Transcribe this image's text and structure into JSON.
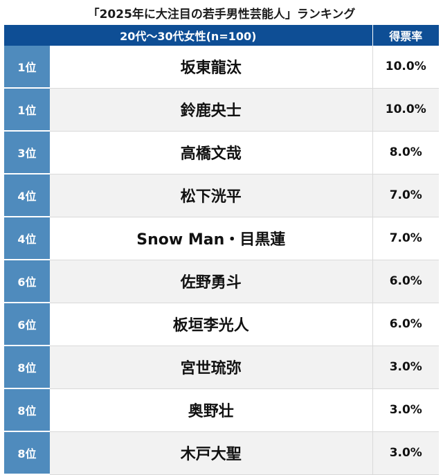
{
  "chart_data": {
    "type": "table",
    "title": "「2025年に大注目の若手男性芸能人」ランキング",
    "header_group": "20代〜30代女性(n=100)",
    "header_pct": "得票率",
    "rows": [
      {
        "rank": "1位",
        "name": "坂東龍汰",
        "pct": "10.0%"
      },
      {
        "rank": "1位",
        "name": "鈴鹿央士",
        "pct": "10.0%"
      },
      {
        "rank": "3位",
        "name": "高橋文哉",
        "pct": "8.0%"
      },
      {
        "rank": "4位",
        "name": "松下洸平",
        "pct": "7.0%"
      },
      {
        "rank": "4位",
        "name": "Snow Man・目黒蓮",
        "pct": "7.0%"
      },
      {
        "rank": "6位",
        "name": "佐野勇斗",
        "pct": "6.0%"
      },
      {
        "rank": "6位",
        "name": "板垣李光人",
        "pct": "6.0%"
      },
      {
        "rank": "8位",
        "name": "宮世琉弥",
        "pct": "3.0%"
      },
      {
        "rank": "8位",
        "name": "奥野壮",
        "pct": "3.0%"
      },
      {
        "rank": "8位",
        "name": "木戸大聖",
        "pct": "3.0%"
      }
    ]
  }
}
